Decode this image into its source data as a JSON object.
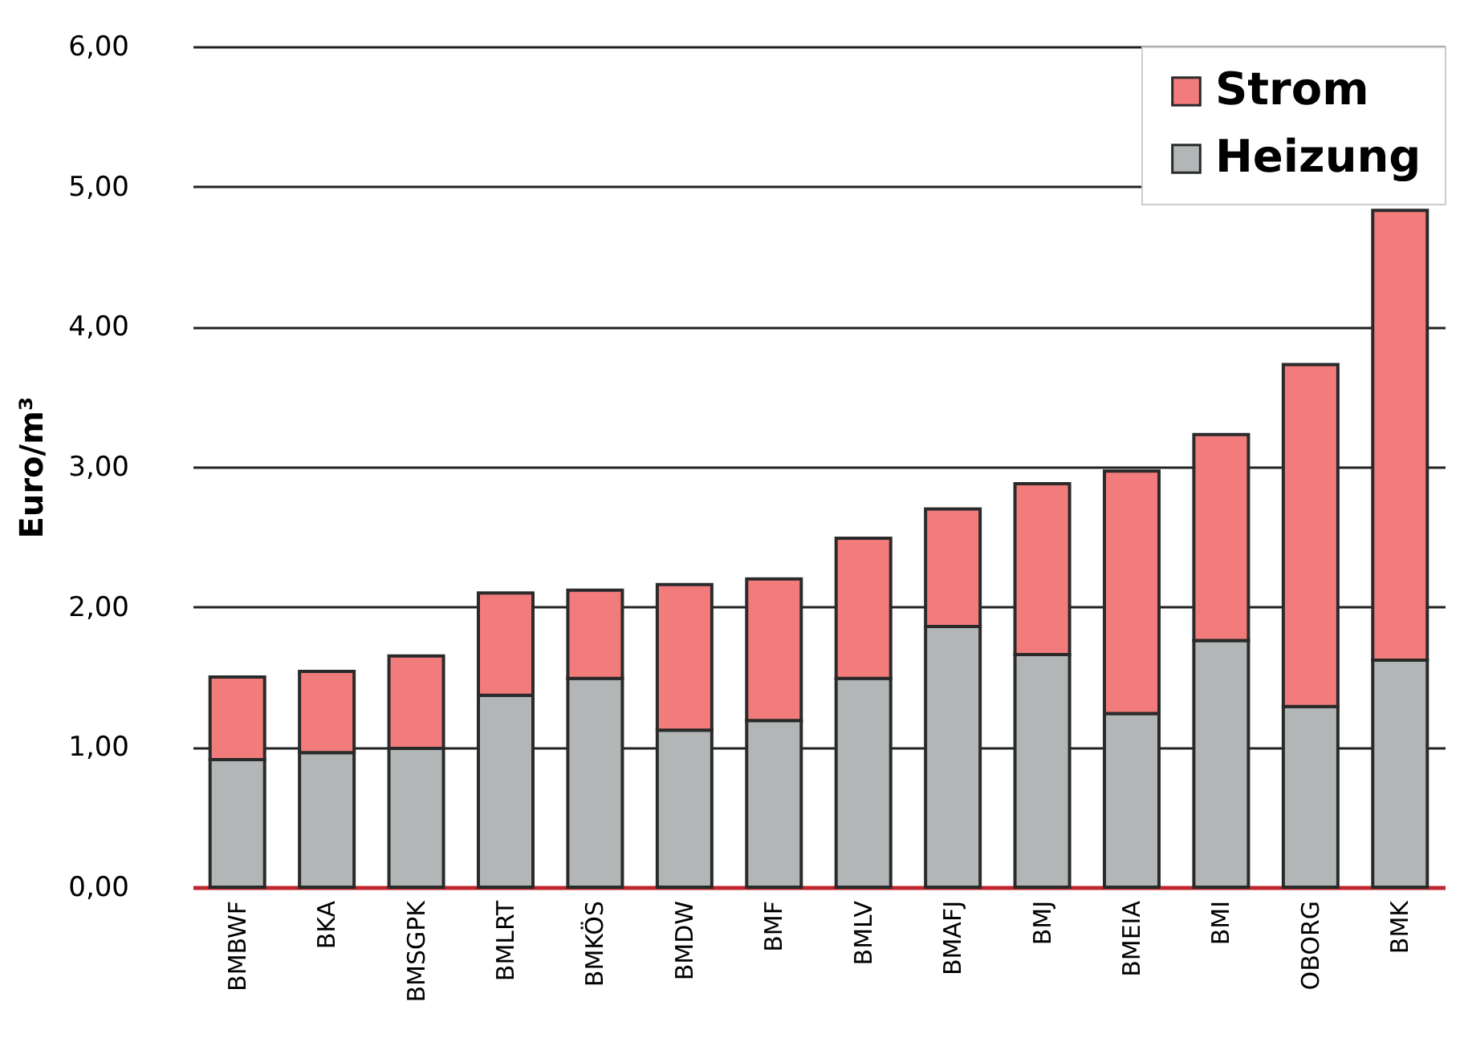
{
  "chart_data": {
    "type": "bar",
    "stacked": true,
    "ylabel": "Euro/m³",
    "categories": [
      "BMBWF",
      "BKA",
      "BMSGPK",
      "BMLRT",
      "BMKÖS",
      "BMDW",
      "BMF",
      "BMLV",
      "BMAFJ",
      "BMJ",
      "BMEIA",
      "BMI",
      "OBORG",
      "BMK"
    ],
    "series": [
      {
        "name": "Heizung",
        "color": "#b3b6b6",
        "values": [
          0.91,
          0.96,
          0.99,
          1.37,
          1.49,
          1.12,
          1.19,
          1.49,
          1.86,
          1.66,
          1.24,
          1.76,
          1.29,
          1.62
        ]
      },
      {
        "name": "Strom",
        "color": "#f27c7c",
        "values": [
          0.59,
          0.58,
          0.66,
          0.73,
          0.63,
          1.04,
          1.01,
          1.0,
          0.84,
          1.22,
          1.73,
          1.47,
          2.44,
          3.21
        ]
      }
    ],
    "ylim": [
      0,
      6
    ],
    "yticks": [
      {
        "value": 0,
        "label": "0,00"
      },
      {
        "value": 1,
        "label": "1,00"
      },
      {
        "value": 2,
        "label": "2,00"
      },
      {
        "value": 3,
        "label": "3,00"
      },
      {
        "value": 4,
        "label": "4,00"
      },
      {
        "value": 5,
        "label": "5,00"
      },
      {
        "value": 6,
        "label": "6,00"
      }
    ],
    "grid": "y",
    "legend": "top right"
  }
}
